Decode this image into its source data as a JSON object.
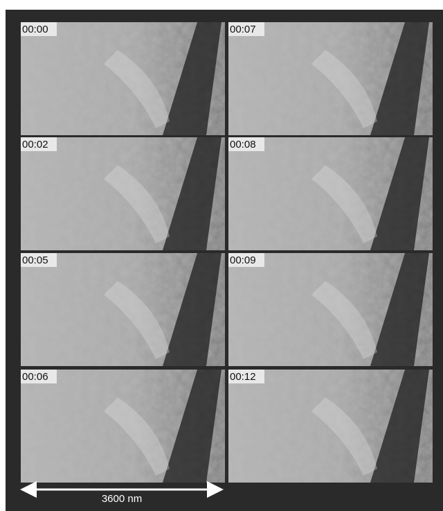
{
  "panels": [
    {
      "label": "00:00"
    },
    {
      "label": "00:07"
    },
    {
      "label": "00:02"
    },
    {
      "label": "00:08"
    },
    {
      "label": "00:05"
    },
    {
      "label": "00:09"
    },
    {
      "label": "00:06"
    },
    {
      "label": "00:12"
    }
  ],
  "scale_bar": {
    "label": "3600 nm"
  }
}
